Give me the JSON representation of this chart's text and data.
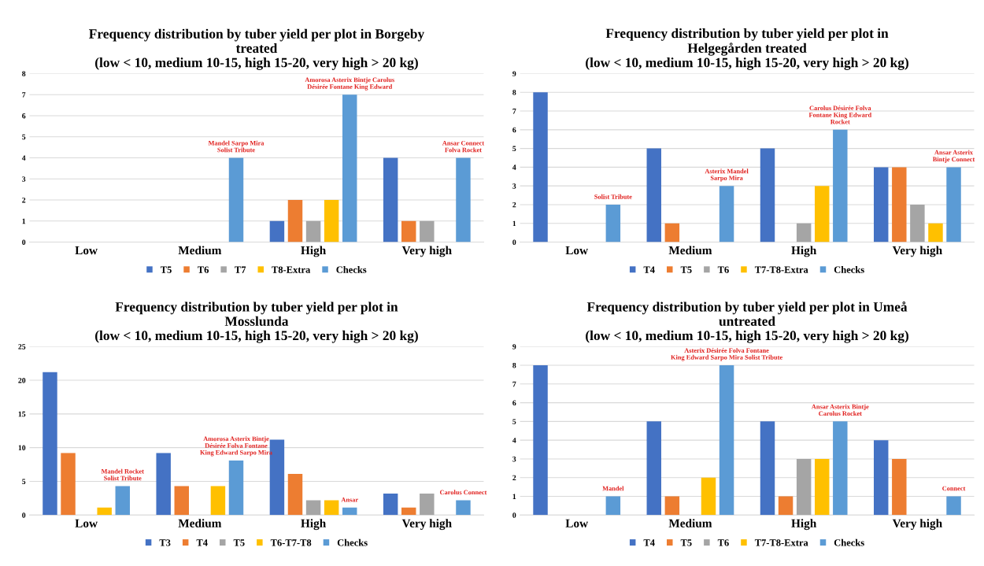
{
  "chart_data": [
    {
      "type": "bar",
      "title": "Frequency distribution by tuber yield per plot in Borgeby\ntreated\n(low < 10, medium 10-15, high 15-20, very high > 20 kg)",
      "categories": [
        "Low",
        "Medium",
        "High",
        "Very high"
      ],
      "series": [
        {
          "name": "T5",
          "color": "#4472c4",
          "values": [
            0,
            0,
            1,
            4
          ]
        },
        {
          "name": "T6",
          "color": "#ed7d31",
          "values": [
            0,
            0,
            2,
            1
          ]
        },
        {
          "name": "T7",
          "color": "#a5a5a5",
          "values": [
            0,
            0,
            1,
            1
          ]
        },
        {
          "name": "T8-Extra",
          "color": "#ffc000",
          "values": [
            0,
            0,
            2,
            0
          ]
        },
        {
          "name": "Checks",
          "color": "#5b9bd5",
          "values": [
            0,
            4,
            7,
            4
          ]
        }
      ],
      "ylim": [
        0,
        8
      ],
      "yticks": [
        0,
        1,
        2,
        3,
        4,
        5,
        6,
        7,
        8
      ],
      "grid": "y",
      "legend": "bottom",
      "annotations": [
        "Mandel Sarpo Mira\nSolist Tribute",
        "Amorosa Asterix Bintje Carolus\nDésirée Fontane King Edward",
        "Ansar Connect\nFolva Rocket"
      ]
    },
    {
      "type": "bar",
      "title": "Frequency distribution by tuber yield per plot in\nHelgegården treated\n(low < 10, medium 10-15, high 15-20, very high > 20 kg)",
      "categories": [
        "Low",
        "Medium",
        "High",
        "Very high"
      ],
      "series": [
        {
          "name": "T4",
          "color": "#4472c4",
          "values": [
            8,
            5,
            5,
            4
          ]
        },
        {
          "name": "T5",
          "color": "#ed7d31",
          "values": [
            0,
            1,
            0,
            4
          ]
        },
        {
          "name": "T6",
          "color": "#a5a5a5",
          "values": [
            0,
            0,
            1,
            2
          ]
        },
        {
          "name": "T7-T8-Extra",
          "color": "#ffc000",
          "values": [
            0,
            0,
            3,
            1
          ]
        },
        {
          "name": "Checks",
          "color": "#5b9bd5",
          "values": [
            2,
            3,
            6,
            4
          ]
        }
      ],
      "ylim": [
        0,
        9
      ],
      "yticks": [
        0,
        1,
        2,
        3,
        4,
        5,
        6,
        7,
        8,
        9
      ],
      "grid": "y",
      "legend": "bottom",
      "annotations": [
        "Solist Tribute",
        "Asterix Mandel\nSarpo Mira",
        "Carolus Désirée Folva\nFontane King Edward\nRocket",
        "Ansar Asterix\nBintje Connect"
      ]
    },
    {
      "type": "bar",
      "title": "Frequency distribution by tuber yield per plot in\nMosslunda\n(low < 10, medium 10-15, high 15-20, very high > 20 kg)",
      "categories": [
        "Low",
        "Medium",
        "High",
        "Very high"
      ],
      "series": [
        {
          "name": "T3",
          "color": "#4472c4",
          "values": [
            21.2,
            9.2,
            11.2,
            3.2
          ]
        },
        {
          "name": "T4",
          "color": "#ed7d31",
          "values": [
            9.2,
            4.3,
            6.1,
            1.1
          ]
        },
        {
          "name": "T5",
          "color": "#a5a5a5",
          "values": [
            0,
            0,
            2.2,
            3.2
          ]
        },
        {
          "name": "T6-T7-T8",
          "color": "#ffc000",
          "values": [
            1.1,
            4.3,
            2.2,
            0
          ]
        },
        {
          "name": "Checks",
          "color": "#5b9bd5",
          "values": [
            4.3,
            8.1,
            1.1,
            2.2
          ]
        }
      ],
      "ylim": [
        0,
        25
      ],
      "yticks": [
        0,
        5,
        10,
        15,
        20,
        25
      ],
      "grid": "y",
      "legend": "bottom",
      "annotations": [
        "Mandel Rocket\nSolist Tribute",
        "Amorosa Asterix Bintje\nDésirée Folva Fontane\nKing Edward Sarpo Mira",
        "Ansar",
        "Carolus Connect"
      ]
    },
    {
      "type": "bar",
      "title": "Frequency distribution by tuber yield per plot in Umeå\nuntreated\n(low < 10, medium 10-15, high 15-20, very high > 20 kg)",
      "categories": [
        "Low",
        "Medium",
        "High",
        "Very high"
      ],
      "series": [
        {
          "name": "T4",
          "color": "#4472c4",
          "values": [
            8,
            5,
            5,
            4
          ]
        },
        {
          "name": "T5",
          "color": "#ed7d31",
          "values": [
            0,
            1,
            1,
            3
          ]
        },
        {
          "name": "T6",
          "color": "#a5a5a5",
          "values": [
            0,
            0,
            3,
            0
          ]
        },
        {
          "name": "T7-T8-Extra",
          "color": "#ffc000",
          "values": [
            0,
            2,
            3,
            0
          ]
        },
        {
          "name": "Checks",
          "color": "#5b9bd5",
          "values": [
            1,
            8,
            5,
            1
          ]
        }
      ],
      "ylim": [
        0,
        9
      ],
      "yticks": [
        0,
        1,
        2,
        3,
        4,
        5,
        6,
        7,
        8,
        9
      ],
      "grid": "y",
      "legend": "bottom",
      "annotations": [
        "Mandel",
        "Asterix Désirée Folva Fontane\nKing Edward Sarpo Mira Solist Tribute",
        "Ansar Asterix Bintje\nCarolus Rocket",
        "Connect"
      ]
    }
  ]
}
